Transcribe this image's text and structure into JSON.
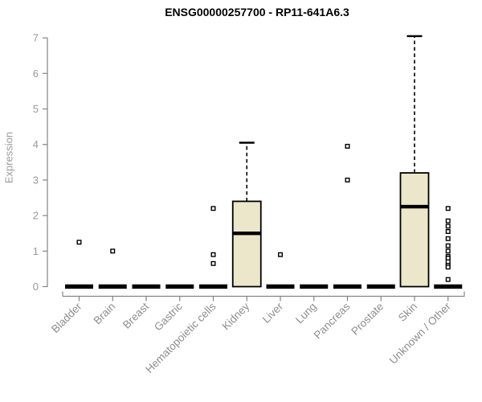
{
  "chart": {
    "title": "ENSG00000257700 - RP11-641A6.3",
    "ylabel": "Expression"
  },
  "chart_data": {
    "type": "boxplot",
    "title": "ENSG00000257700 - RP11-641A6.3",
    "xlabel": "",
    "ylabel": "Expression",
    "ylim": [
      0,
      7
    ],
    "yticks": [
      0,
      1,
      2,
      3,
      4,
      5,
      6,
      7
    ],
    "grid": false,
    "legend": null,
    "categories": [
      "Bladder",
      "Brain",
      "Breast",
      "Gastric",
      "Hematopoietic cells",
      "Kidney",
      "Liver",
      "Lung",
      "Pancreas",
      "Prostate",
      "Skin",
      "Unknown / Other"
    ],
    "boxes": [
      {
        "category": "Bladder",
        "whisker_low": 0,
        "q1": 0,
        "median": 0,
        "q3": 0,
        "whisker_high": 0,
        "outliers": [
          1.25
        ]
      },
      {
        "category": "Brain",
        "whisker_low": 0,
        "q1": 0,
        "median": 0,
        "q3": 0,
        "whisker_high": 0,
        "outliers": [
          1.0
        ]
      },
      {
        "category": "Breast",
        "whisker_low": 0,
        "q1": 0,
        "median": 0,
        "q3": 0,
        "whisker_high": 0,
        "outliers": []
      },
      {
        "category": "Gastric",
        "whisker_low": 0,
        "q1": 0,
        "median": 0,
        "q3": 0,
        "whisker_high": 0,
        "outliers": []
      },
      {
        "category": "Hematopoietic cells",
        "whisker_low": 0,
        "q1": 0,
        "median": 0,
        "q3": 0,
        "whisker_high": 0,
        "outliers": [
          2.2,
          0.9,
          0.65
        ]
      },
      {
        "category": "Kidney",
        "whisker_low": 0,
        "q1": 0,
        "median": 1.5,
        "q3": 2.4,
        "whisker_high": 4.05,
        "outliers": []
      },
      {
        "category": "Liver",
        "whisker_low": 0,
        "q1": 0,
        "median": 0,
        "q3": 0,
        "whisker_high": 0,
        "outliers": [
          0.9
        ]
      },
      {
        "category": "Lung",
        "whisker_low": 0,
        "q1": 0,
        "median": 0,
        "q3": 0,
        "whisker_high": 0,
        "outliers": []
      },
      {
        "category": "Pancreas",
        "whisker_low": 0,
        "q1": 0,
        "median": 0,
        "q3": 0,
        "whisker_high": 0,
        "outliers": [
          3.95,
          3.0
        ]
      },
      {
        "category": "Prostate",
        "whisker_low": 0,
        "q1": 0,
        "median": 0,
        "q3": 0,
        "whisker_high": 0,
        "outliers": []
      },
      {
        "category": "Skin",
        "whisker_low": 0,
        "q1": 0,
        "median": 2.25,
        "q3": 3.2,
        "whisker_high": 7.05,
        "outliers": []
      },
      {
        "category": "Unknown / Other",
        "whisker_low": 0,
        "q1": 0,
        "median": 0,
        "q3": 0,
        "whisker_high": 0,
        "outliers": [
          2.2,
          1.85,
          1.7,
          1.55,
          1.35,
          1.15,
          1.0,
          0.85,
          0.8,
          0.7,
          0.6,
          0.55,
          0.2
        ]
      }
    ],
    "colors": {
      "box_fill": "#ECE7CB",
      "box_border": "#000000",
      "median": "#000000",
      "whisker": "#000000",
      "outlier_stroke": "#000000",
      "outlier_fill": "#ffffff",
      "axis_line": "#848484",
      "tick_label": "#999999",
      "category_label": "#8e8e8e",
      "title": "#000000",
      "background": "#ffffff"
    }
  }
}
